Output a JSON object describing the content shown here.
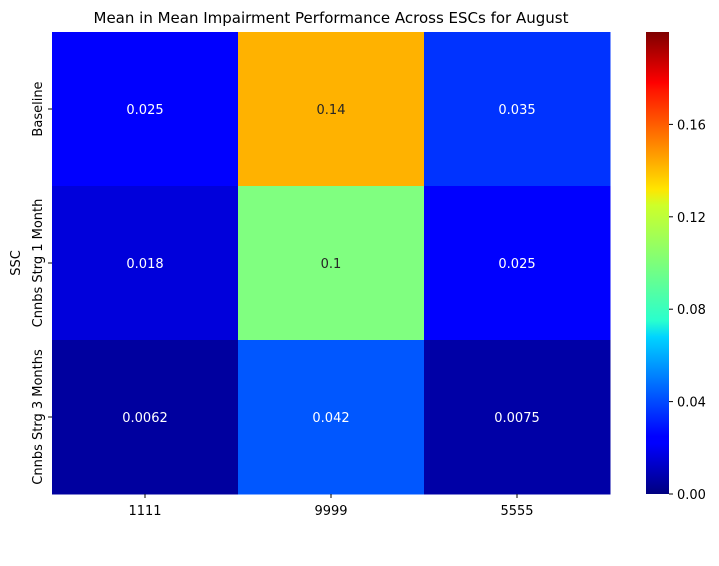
{
  "chart_data": {
    "type": "heatmap",
    "title": "Mean in Mean Impairment Performance Across ESCs for August",
    "xlabel": "",
    "ylabel": "SSC",
    "x_categories": [
      "1111",
      "9999",
      "5555"
    ],
    "y_categories": [
      "Baseline",
      "Cnnbs Strg 1 Month",
      "Cnnbs Strg 3 Months"
    ],
    "values": [
      [
        0.025,
        0.14,
        0.035
      ],
      [
        0.018,
        0.1,
        0.025
      ],
      [
        0.0062,
        0.042,
        0.0075
      ]
    ],
    "annotations": [
      [
        "0.025",
        "0.14",
        "0.035"
      ],
      [
        "0.018",
        "0.1",
        "0.025"
      ],
      [
        "0.0062",
        "0.042",
        "0.0075"
      ]
    ],
    "colormap": "jet",
    "colorbar": {
      "vmin": 0,
      "vmax": 0.2,
      "ticks": [
        0,
        0.04,
        0.08,
        0.12,
        0.16
      ],
      "tick_labels": [
        "0.00",
        "0.04",
        "0.08",
        "0.12",
        "0.16"
      ]
    }
  }
}
